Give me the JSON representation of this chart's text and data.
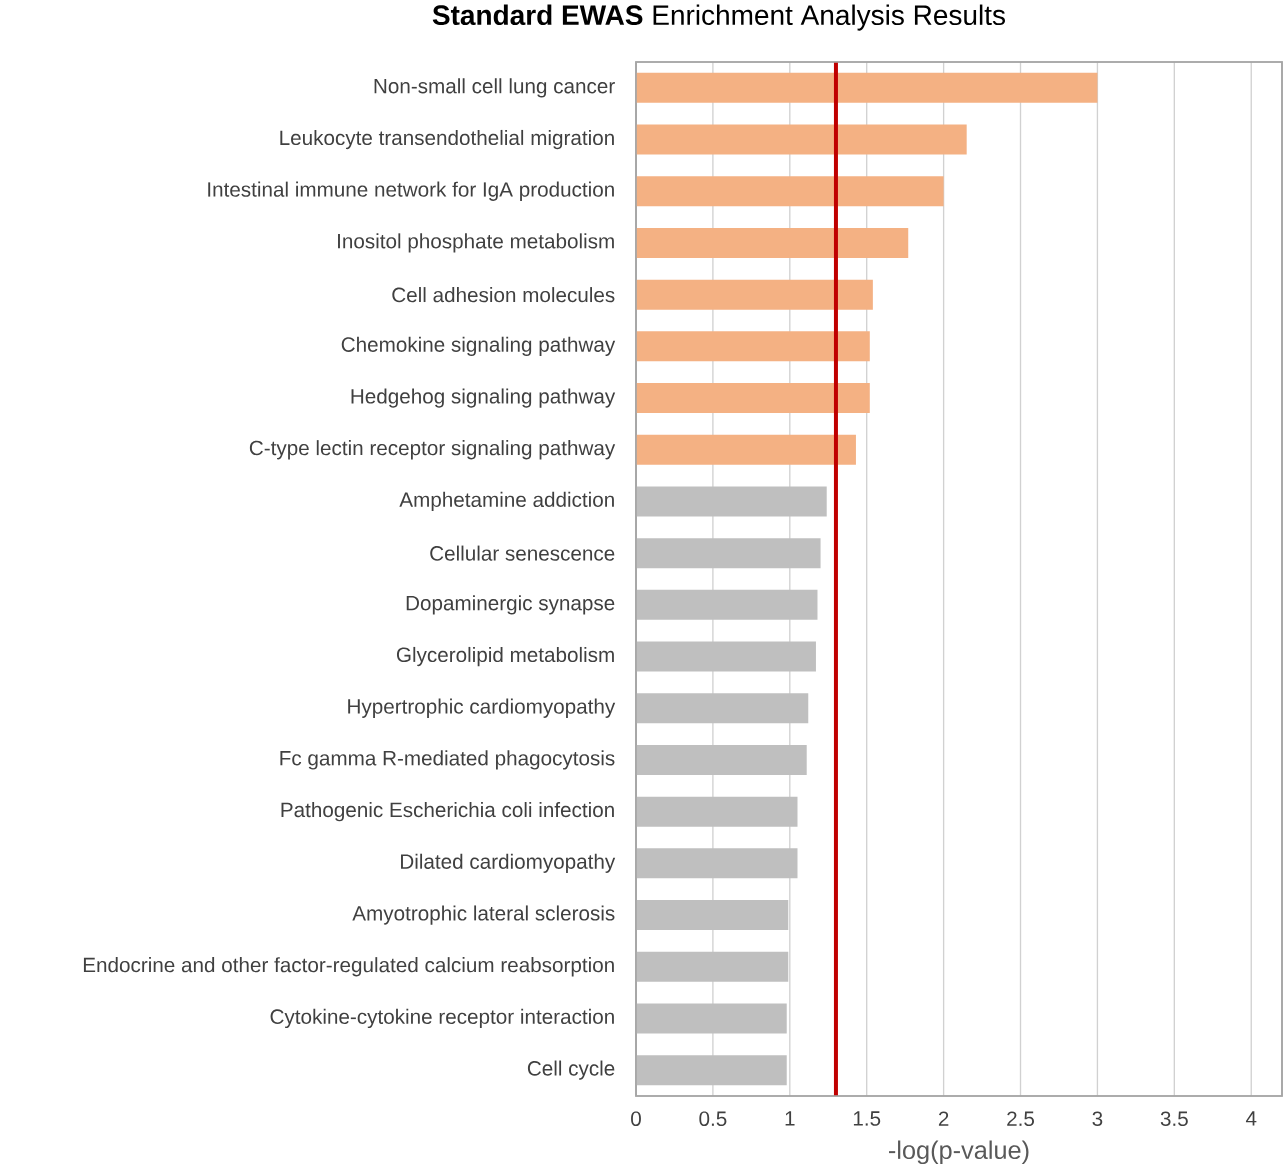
{
  "chart_data": {
    "type": "bar",
    "orientation": "horizontal",
    "title": "**Standard EWAS** Enrichment Analysis Results",
    "xlabel": "-log(p-value)",
    "categories": [
      "Non-small cell lung cancer",
      "Leukocyte transendothelial migration",
      "Intestinal immune network for IgA production",
      "Inositol phosphate metabolism",
      "Cell adhesion molecules",
      "Chemokine signaling pathway",
      "Hedgehog signaling pathway",
      "C-type lectin receptor signaling pathway",
      "Amphetamine addiction",
      "Cellular senescence",
      "Dopaminergic synapse",
      "Glycerolipid metabolism",
      "Hypertrophic cardiomyopathy",
      "Fc gamma R-mediated phagocytosis",
      "Pathogenic Escherichia coli infection",
      "Dilated cardiomyopathy",
      "Amyotrophic lateral sclerosis",
      "Endocrine and other factor-regulated calcium reabsorption",
      "Cytokine-cytokine receptor interaction",
      "Cell cycle"
    ],
    "values": [
      3.0,
      2.15,
      2.0,
      1.77,
      1.54,
      1.52,
      1.52,
      1.43,
      1.24,
      1.2,
      1.18,
      1.17,
      1.12,
      1.11,
      1.05,
      1.05,
      0.99,
      0.99,
      0.98,
      0.98
    ],
    "colors": [
      "#f4b183",
      "#f4b183",
      "#f4b183",
      "#f4b183",
      "#f4b183",
      "#f4b183",
      "#f4b183",
      "#f4b183",
      "#bfbfbf",
      "#bfbfbf",
      "#bfbfbf",
      "#bfbfbf",
      "#bfbfbf",
      "#bfbfbf",
      "#bfbfbf",
      "#bfbfbf",
      "#bfbfbf",
      "#bfbfbf",
      "#bfbfbf",
      "#bfbfbf"
    ],
    "xlim": [
      0,
      4.2
    ],
    "xticks": [
      0,
      0.5,
      1,
      1.5,
      2,
      2.5,
      3,
      3.5,
      4
    ],
    "grid": "x",
    "ref_lines": [
      {
        "axis": "x",
        "value": 1.3,
        "color": "#c00000"
      }
    ]
  }
}
